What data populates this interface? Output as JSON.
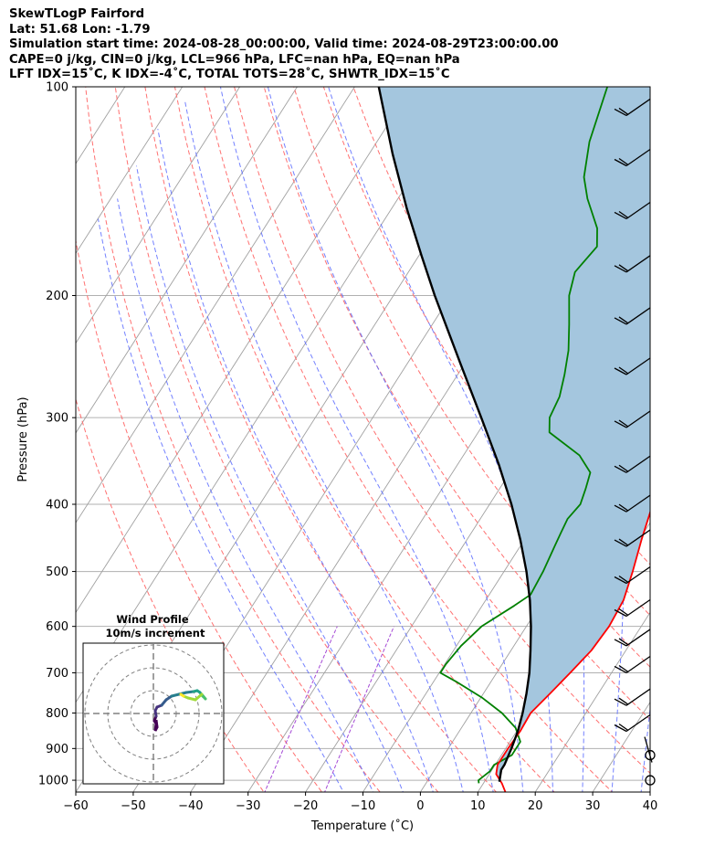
{
  "header": {
    "line1": "SkewTLogP Fairford",
    "line2": "Lat: 51.68   Lon: -1.79",
    "line3": "Simulation start time: 2024-08-28_00:00:00, Valid time: 2024-08-29T23:00:00.00",
    "line4": "CAPE=0 j/kg, CIN=0 j/kg, LCL=966 hPa, LFC=nan hPa, EQ=nan hPa",
    "line5": "LFT IDX=15˚C, K IDX=-4˚C, TOTAL TOTS=28˚C, SHWTR_IDX=15˚C"
  },
  "colors": {
    "temperature": "#ff0000",
    "dewpoint": "#008000",
    "parcel": "#000000",
    "shading": "#a4c6de",
    "isotherm": "#a0a0a0",
    "dry_adiabat": "#ff7070",
    "moist_adiabat": "#5a6bff",
    "mixing_ratio": "#a54ad6"
  },
  "chart_data": {
    "type": "line",
    "title": "",
    "xlabel": "Temperature (˚C)",
    "ylabel": "Pressure (hPa)",
    "xlim": [
      -60,
      40
    ],
    "ylim": [
      1040,
      100
    ],
    "yscale": "log",
    "grid": true,
    "x_ticks": [
      "−60",
      "−50",
      "−40",
      "−30",
      "−20",
      "−10",
      "0",
      "10",
      "20",
      "30",
      "40"
    ],
    "y_ticks": [
      "100",
      "200",
      "300",
      "400",
      "500",
      "600",
      "700",
      "800",
      "900",
      "1000"
    ],
    "y_tick_values": [
      100,
      200,
      300,
      400,
      500,
      600,
      700,
      800,
      900,
      1000
    ],
    "series": [
      {
        "key": "temperature",
        "points": [
          [
            1040,
            14.8
          ],
          [
            1010,
            13.2
          ],
          [
            980,
            11.2
          ],
          [
            950,
            10.4
          ],
          [
            900,
            10.4
          ],
          [
            850,
            10.6
          ],
          [
            800,
            10.4
          ],
          [
            750,
            11.6
          ],
          [
            700,
            12.8
          ],
          [
            650,
            14.0
          ],
          [
            600,
            14.4
          ],
          [
            550,
            14.0
          ],
          [
            500,
            12.4
          ],
          [
            450,
            10.4
          ],
          [
            400,
            8.4
          ],
          [
            370,
            7.0
          ],
          [
            340,
            5.4
          ],
          [
            310,
            2.8
          ],
          [
            280,
            -0.4
          ],
          [
            250,
            -4.8
          ],
          [
            230,
            -8.0
          ],
          [
            210,
            -10.4
          ],
          [
            200,
            -10.0
          ],
          [
            190,
            -10.4
          ],
          [
            175,
            -10.8
          ],
          [
            160,
            -12.8
          ],
          [
            145,
            -16.0
          ],
          [
            140,
            -17.6
          ],
          [
            130,
            -20.0
          ],
          [
            120,
            -21.0
          ],
          [
            110,
            -23.0
          ],
          [
            100,
            -27.0
          ]
        ]
      },
      {
        "key": "dewpoint",
        "points": [
          [
            1010,
            9.2
          ],
          [
            1000,
            8.8
          ],
          [
            970,
            9.8
          ],
          [
            950,
            9.8
          ],
          [
            920,
            11.8
          ],
          [
            880,
            11.8
          ],
          [
            840,
            9.4
          ],
          [
            800,
            5.4
          ],
          [
            760,
            0.2
          ],
          [
            720,
            -6.2
          ],
          [
            700,
            -9.8
          ],
          [
            680,
            -9.8
          ],
          [
            640,
            -9.2
          ],
          [
            600,
            -7.8
          ],
          [
            560,
            -4.4
          ],
          [
            540,
            -2.8
          ],
          [
            500,
            -3.2
          ],
          [
            460,
            -4.0
          ],
          [
            440,
            -4.4
          ],
          [
            420,
            -4.8
          ],
          [
            400,
            -4.2
          ],
          [
            380,
            -5.0
          ],
          [
            360,
            -6.0
          ],
          [
            340,
            -9.8
          ],
          [
            315,
            -17.6
          ],
          [
            300,
            -19.2
          ],
          [
            280,
            -19.8
          ],
          [
            260,
            -21.4
          ],
          [
            240,
            -23.4
          ],
          [
            220,
            -26.2
          ],
          [
            200,
            -29.4
          ],
          [
            185,
            -31.0
          ],
          [
            170,
            -30.0
          ],
          [
            160,
            -32.0
          ],
          [
            145,
            -37.0
          ],
          [
            135,
            -40.0
          ],
          [
            120,
            -43.0
          ],
          [
            100,
            -46.0
          ]
        ]
      },
      {
        "key": "parcel",
        "points": [
          [
            1005,
            12.6
          ],
          [
            966,
            11.6
          ],
          [
            950,
            11.6
          ],
          [
            900,
            11.0
          ],
          [
            850,
            10.2
          ],
          [
            800,
            9.0
          ],
          [
            750,
            7.5
          ],
          [
            700,
            5.7
          ],
          [
            650,
            3.4
          ],
          [
            600,
            0.8
          ],
          [
            550,
            -2.3
          ],
          [
            500,
            -6.1
          ],
          [
            450,
            -10.7
          ],
          [
            400,
            -16.2
          ],
          [
            350,
            -22.9
          ],
          [
            300,
            -31.1
          ],
          [
            250,
            -40.9
          ],
          [
            200,
            -52.8
          ],
          [
            175,
            -59.6
          ],
          [
            150,
            -67.3
          ],
          [
            125,
            -75.9
          ],
          [
            100,
            -85.8
          ]
        ]
      }
    ],
    "wind_barb_pressures": [
      1000,
      920,
      850,
      780,
      700,
      640,
      580,
      520,
      460,
      410,
      360,
      310,
      260,
      220,
      185,
      155,
      130,
      110
    ],
    "hodograph": {
      "title": "Wind Profile",
      "subtitle": "10m/s increment",
      "ring_increment_ms": 10,
      "rings": 3
    }
  }
}
